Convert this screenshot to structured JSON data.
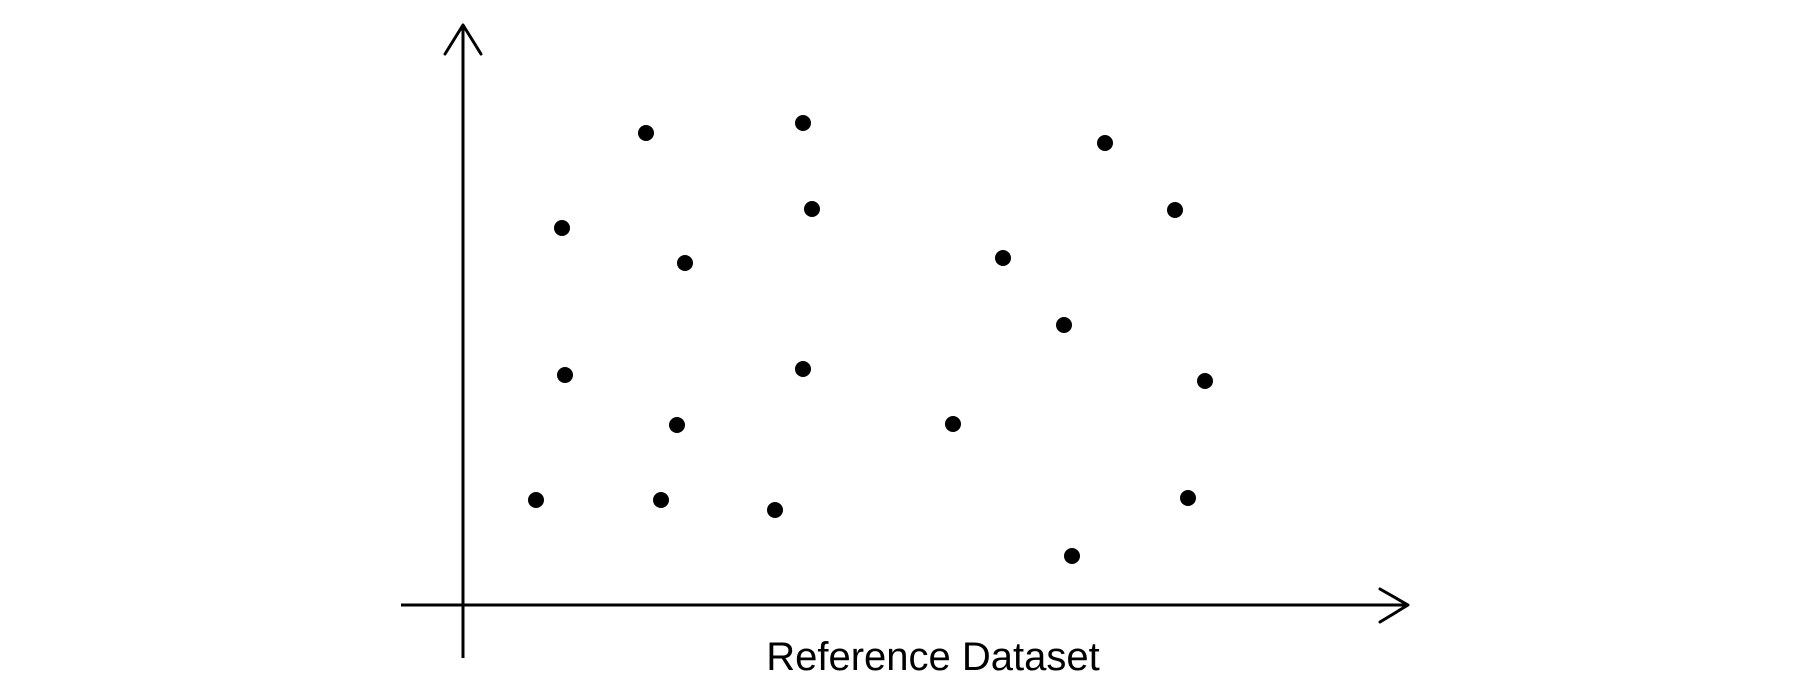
{
  "chart_data": {
    "type": "scatter",
    "title": "",
    "xlabel": "Reference Dataset",
    "ylabel": "",
    "grid": false,
    "xlim": [
      0,
      1000
    ],
    "ylim": [
      0,
      600
    ],
    "series": [
      {
        "points": [
          [
            73,
            105
          ],
          [
            99,
            377
          ],
          [
            102,
            230
          ],
          [
            183,
            472
          ],
          [
            198,
            105
          ],
          [
            214,
            180
          ],
          [
            222,
            342
          ],
          [
            312,
            95
          ],
          [
            340,
            236
          ],
          [
            340,
            482
          ],
          [
            349,
            396
          ],
          [
            490,
            181
          ],
          [
            540,
            347
          ],
          [
            601,
            280
          ],
          [
            609,
            49
          ],
          [
            642,
            462
          ],
          [
            712,
            395
          ],
          [
            725,
            107
          ],
          [
            742,
            224
          ]
        ]
      }
    ],
    "colors": {
      "axis": "#000000",
      "point": "#000000",
      "background": "#ffffff"
    }
  }
}
